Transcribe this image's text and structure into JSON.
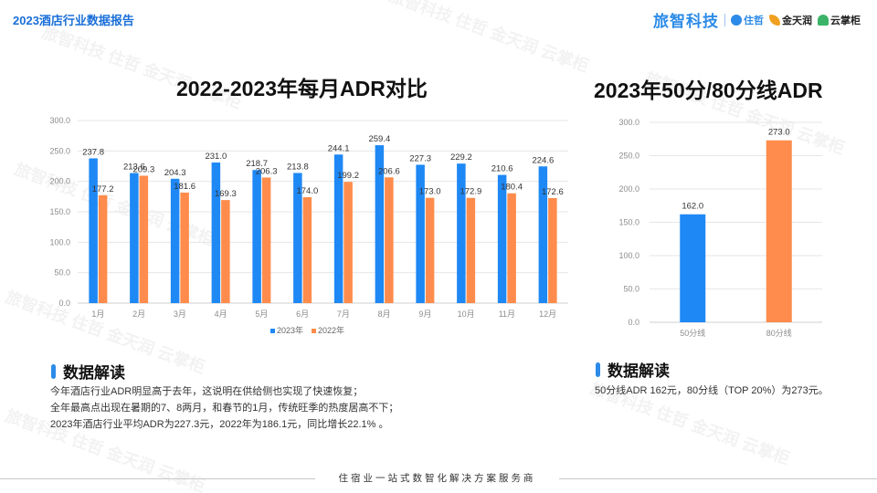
{
  "header": {
    "report_title": "2023酒店行业数据报告",
    "logo_main": "旅智科技",
    "logo_jiazhe": "住哲",
    "logo_jintianrun": "金天润",
    "logo_yunzhanggui": "云掌柜"
  },
  "watermark": "旅智科技 住哲 金天润 云掌柜",
  "colors": {
    "series_2023": "#1e88f5",
    "series_2022": "#ff8c4c",
    "accent": "#2c8be8",
    "grid": "#e6e6e6"
  },
  "chart_data": [
    {
      "type": "bar",
      "title": "2022-2023年每月ADR对比",
      "categories": [
        "1月",
        "2月",
        "3月",
        "4月",
        "5月",
        "6月",
        "7月",
        "8月",
        "9月",
        "10月",
        "11月",
        "12月"
      ],
      "series": [
        {
          "name": "2023年",
          "values": [
            237.8,
            213.6,
            204.3,
            231.0,
            218.7,
            213.8,
            244.1,
            259.4,
            227.3,
            229.2,
            210.6,
            224.6
          ]
        },
        {
          "name": "2022年",
          "values": [
            177.2,
            209.3,
            181.6,
            169.3,
            206.3,
            174.0,
            199.2,
            206.6,
            173.0,
            172.9,
            180.4,
            172.6
          ]
        }
      ],
      "ylim": [
        0,
        300
      ],
      "yticks": [
        "0.0",
        "50.0",
        "100.0",
        "150.0",
        "200.0",
        "250.0",
        "300.0"
      ],
      "grid": true,
      "legend": "bottom-center",
      "xlabel": "",
      "ylabel": ""
    },
    {
      "type": "bar",
      "title": "2023年50分/80分线ADR",
      "categories": [
        "50分线",
        "80分线"
      ],
      "values": [
        162.0,
        273.0
      ],
      "ylim": [
        0,
        300
      ],
      "yticks": [
        "0.0",
        "50.0",
        "100.0",
        "150.0",
        "200.0",
        "250.0",
        "300.0"
      ],
      "grid": true,
      "xlabel": "",
      "ylabel": ""
    }
  ],
  "left_section": {
    "heading": "数据解读",
    "lines": [
      "今年酒店行业ADR明显高于去年，这说明在供给侧也实现了快速恢复；",
      "全年最高点出现在暑期的7、8两月，和春节的1月，传统旺季的热度居高不下；",
      "2023年酒店行业平均ADR为227.3元，2022年为186.1元，同比增长22.1% 。"
    ]
  },
  "right_section": {
    "heading": "数据解读",
    "line": "50分线ADR 162元，80分线（TOP 20%）为273元。"
  },
  "footer": {
    "text": "住宿业一站式数智化解决方案服务商"
  }
}
